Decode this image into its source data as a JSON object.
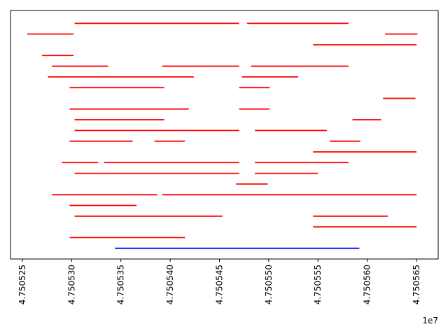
{
  "chart_data": {
    "type": "segment",
    "title": "",
    "xlabel": "",
    "ylabel": "",
    "x_offset_label": "1e7",
    "xlim": [
      4.7505238,
      4.7505672
    ],
    "ylim": [
      -1,
      22.2
    ],
    "yticks_visible": false,
    "grid": false,
    "xticks": [
      {
        "value": 4.750525,
        "label": "4.750525"
      },
      {
        "value": 4.75053,
        "label": "4.750530"
      },
      {
        "value": 4.750535,
        "label": "4.750535"
      },
      {
        "value": 4.75054,
        "label": "4.750540"
      },
      {
        "value": 4.750545,
        "label": "4.750545"
      },
      {
        "value": 4.75055,
        "label": "4.750550"
      },
      {
        "value": 4.750555,
        "label": "4.750555"
      },
      {
        "value": 4.75056,
        "label": "4.750560"
      },
      {
        "value": 4.750565,
        "label": "4.750565"
      }
    ],
    "series": [
      {
        "color": "#ff0000",
        "segments": [
          {
            "y": 21,
            "x0": 4.7505303,
            "x1": 4.750547
          },
          {
            "y": 21,
            "x0": 4.7505478,
            "x1": 4.7505581
          },
          {
            "y": 20,
            "x0": 4.7505255,
            "x1": 4.7505302
          },
          {
            "y": 20,
            "x0": 4.7505618,
            "x1": 4.7505651
          },
          {
            "y": 19,
            "x0": 4.7505545,
            "x1": 4.750565
          },
          {
            "y": 18,
            "x0": 4.750527,
            "x1": 4.7505302
          },
          {
            "y": 17,
            "x0": 4.750528,
            "x1": 4.7505337
          },
          {
            "y": 17,
            "x0": 4.7505392,
            "x1": 4.750547
          },
          {
            "y": 17,
            "x0": 4.7505482,
            "x1": 4.7505581
          },
          {
            "y": 16,
            "x0": 4.7505276,
            "x1": 4.7505424
          },
          {
            "y": 16,
            "x0": 4.7505473,
            "x1": 4.750553
          },
          {
            "y": 15,
            "x0": 4.7505298,
            "x1": 4.7505394
          },
          {
            "y": 15,
            "x0": 4.750547,
            "x1": 4.7505501
          },
          {
            "y": 14,
            "x0": 4.7505616,
            "x1": 4.7505649
          },
          {
            "y": 13,
            "x0": 4.7505298,
            "x1": 4.7505419
          },
          {
            "y": 13,
            "x0": 4.750547,
            "x1": 4.7505501
          },
          {
            "y": 12,
            "x0": 4.7505303,
            "x1": 4.7505394
          },
          {
            "y": 12,
            "x0": 4.7505585,
            "x1": 4.7505614
          },
          {
            "y": 11,
            "x0": 4.7505303,
            "x1": 4.750547
          },
          {
            "y": 11,
            "x0": 4.7505486,
            "x1": 4.7505559
          },
          {
            "y": 10,
            "x0": 4.7505298,
            "x1": 4.7505362
          },
          {
            "y": 10,
            "x0": 4.7505384,
            "x1": 4.7505415
          },
          {
            "y": 10,
            "x0": 4.7505562,
            "x1": 4.7505593
          },
          {
            "y": 9,
            "x0": 4.7505545,
            "x1": 4.750565
          },
          {
            "y": 8,
            "x0": 4.750529,
            "x1": 4.7505327
          },
          {
            "y": 8,
            "x0": 4.7505333,
            "x1": 4.750547
          },
          {
            "y": 8,
            "x0": 4.7505486,
            "x1": 4.7505581
          },
          {
            "y": 7,
            "x0": 4.7505303,
            "x1": 4.750547
          },
          {
            "y": 7,
            "x0": 4.7505486,
            "x1": 4.750555
          },
          {
            "y": 6,
            "x0": 4.7505467,
            "x1": 4.7505499
          },
          {
            "y": 5,
            "x0": 4.750528,
            "x1": 4.7505387
          },
          {
            "y": 5,
            "x0": 4.7505392,
            "x1": 4.7505451
          },
          {
            "y": 5,
            "x0": 4.7505451,
            "x1": 4.750565
          },
          {
            "y": 4,
            "x0": 4.7505298,
            "x1": 4.7505366
          },
          {
            "y": 3,
            "x0": 4.7505303,
            "x1": 4.7505453
          },
          {
            "y": 3,
            "x0": 4.7505545,
            "x1": 4.7505621
          },
          {
            "y": 2,
            "x0": 4.7505545,
            "x1": 4.750565
          },
          {
            "y": 1,
            "x0": 4.7505298,
            "x1": 4.7505415
          }
        ]
      },
      {
        "color": "#0000ff",
        "segments": [
          {
            "y": 0,
            "x0": 4.7505344,
            "x1": 4.7505592
          }
        ]
      }
    ]
  }
}
